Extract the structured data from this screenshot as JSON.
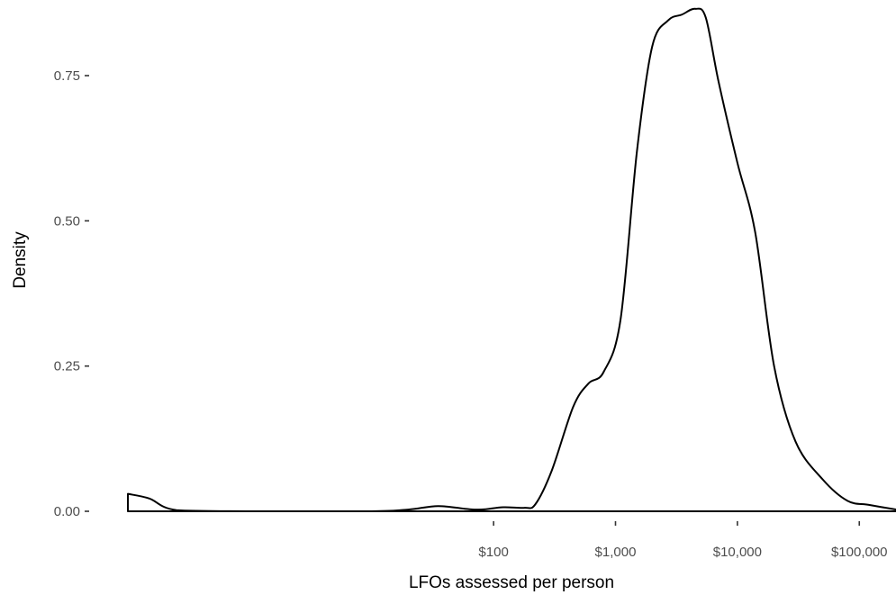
{
  "chart_data": {
    "type": "area",
    "xlabel": "LFOs assessed per person",
    "ylabel": "Density",
    "x_scale": "log10",
    "xlim": [
      0.1,
      200000
    ],
    "ylim": [
      0,
      0.87
    ],
    "x_ticks": [
      {
        "value": 100,
        "label": "$100"
      },
      {
        "value": 1000,
        "label": "$1,000"
      },
      {
        "value": 10000,
        "label": "$10,000"
      },
      {
        "value": 100000,
        "label": "$100,000"
      }
    ],
    "y_ticks": [
      {
        "value": 0,
        "label": "0.00"
      },
      {
        "value": 0.25,
        "label": "0.25"
      },
      {
        "value": 0.5,
        "label": "0.50"
      },
      {
        "value": 0.75,
        "label": "0.75"
      }
    ],
    "grid": false,
    "series": [
      {
        "points": [
          {
            "x": 0.1,
            "y": 0.03
          },
          {
            "x": 0.15,
            "y": 0.022
          },
          {
            "x": 0.25,
            "y": 0.002
          },
          {
            "x": 1,
            "y": 0.0
          },
          {
            "x": 10,
            "y": 0.0
          },
          {
            "x": 20,
            "y": 0.003
          },
          {
            "x": 35,
            "y": 0.009
          },
          {
            "x": 60,
            "y": 0.004
          },
          {
            "x": 80,
            "y": 0.003
          },
          {
            "x": 120,
            "y": 0.007
          },
          {
            "x": 180,
            "y": 0.006
          },
          {
            "x": 220,
            "y": 0.012
          },
          {
            "x": 300,
            "y": 0.07
          },
          {
            "x": 450,
            "y": 0.18
          },
          {
            "x": 600,
            "y": 0.22
          },
          {
            "x": 800,
            "y": 0.24
          },
          {
            "x": 1100,
            "y": 0.33
          },
          {
            "x": 1500,
            "y": 0.62
          },
          {
            "x": 2000,
            "y": 0.8
          },
          {
            "x": 2700,
            "y": 0.845
          },
          {
            "x": 3500,
            "y": 0.855
          },
          {
            "x": 4500,
            "y": 0.865
          },
          {
            "x": 5500,
            "y": 0.85
          },
          {
            "x": 7000,
            "y": 0.74
          },
          {
            "x": 10000,
            "y": 0.6
          },
          {
            "x": 14000,
            "y": 0.48
          },
          {
            "x": 20000,
            "y": 0.25
          },
          {
            "x": 30000,
            "y": 0.12
          },
          {
            "x": 50000,
            "y": 0.055
          },
          {
            "x": 80000,
            "y": 0.018
          },
          {
            "x": 120000,
            "y": 0.011
          },
          {
            "x": 200000,
            "y": 0.003
          }
        ]
      }
    ]
  }
}
